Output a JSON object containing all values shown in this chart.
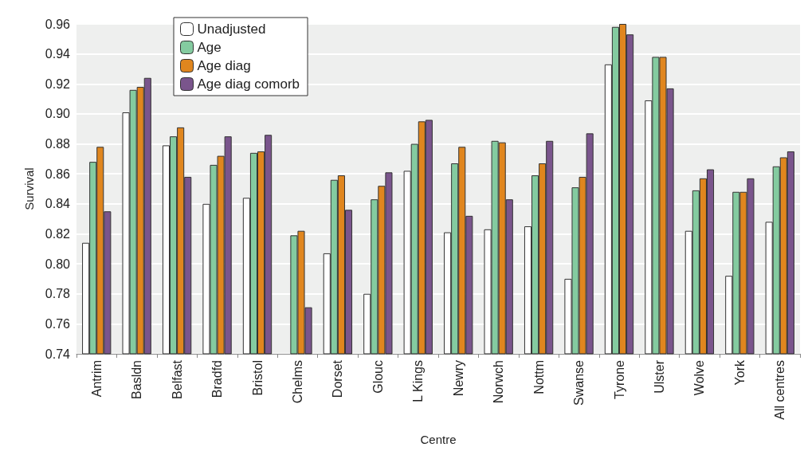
{
  "chart_data": {
    "type": "bar",
    "xlabel": "Centre",
    "ylabel": "Survival",
    "categories": [
      "Antrim",
      "Basldn",
      "Belfast",
      "Bradfd",
      "Bristol",
      "Chelms",
      "Dorset",
      "Glouc",
      "L Kings",
      "Newry",
      "Norwch",
      "Nottm",
      "Swanse",
      "Tyrone",
      "Ulster",
      "Wolve",
      "York",
      "All centres"
    ],
    "series": [
      {
        "name": "Unadjusted",
        "color": "#ffffff",
        "values": [
          0.814,
          0.901,
          0.879,
          0.84,
          0.844,
          null,
          0.807,
          0.78,
          0.862,
          0.821,
          0.823,
          0.825,
          0.79,
          0.933,
          0.909,
          0.822,
          0.792,
          0.828
        ]
      },
      {
        "name": "Age",
        "color": "#84cba0",
        "values": [
          0.868,
          0.916,
          0.885,
          0.866,
          0.874,
          0.819,
          0.856,
          0.843,
          0.88,
          0.867,
          0.882,
          0.859,
          0.851,
          0.958,
          0.938,
          0.849,
          0.848,
          0.865
        ]
      },
      {
        "name": "Age diag",
        "color": "#e0861e",
        "values": [
          0.878,
          0.918,
          0.891,
          0.872,
          0.875,
          0.822,
          0.859,
          0.852,
          0.895,
          0.878,
          0.881,
          0.867,
          0.858,
          0.96,
          0.938,
          0.857,
          0.848,
          0.871
        ]
      },
      {
        "name": "Age diag comorb",
        "color": "#7a558c",
        "values": [
          0.835,
          0.924,
          0.858,
          0.885,
          0.886,
          0.771,
          0.836,
          0.861,
          0.896,
          0.832,
          0.843,
          0.882,
          0.887,
          0.953,
          0.917,
          0.863,
          0.857,
          0.875
        ]
      }
    ],
    "ylim": [
      0.74,
      0.96
    ],
    "yticks": [
      0.74,
      0.76,
      0.78,
      {
        "value": 0.8,
        "label": "0.80"
      },
      0.82,
      0.84,
      0.86,
      0.88,
      {
        "value": 0.9,
        "label": "0.90"
      },
      0.92,
      0.94,
      0.96
    ],
    "grid": "y",
    "legend": "top left"
  }
}
